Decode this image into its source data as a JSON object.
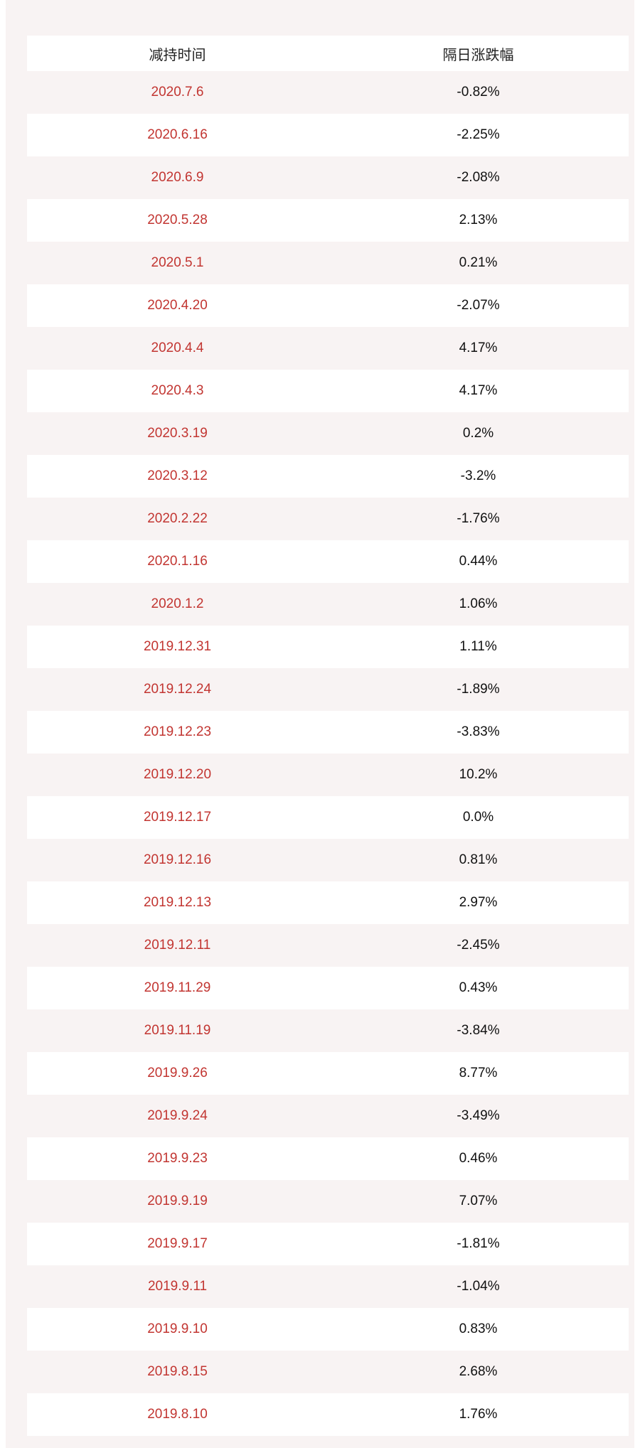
{
  "table": {
    "headers": [
      "减持时间",
      "隔日涨跌幅"
    ],
    "rows": [
      {
        "date": "2020.7.6",
        "change": "-0.82%"
      },
      {
        "date": "2020.6.16",
        "change": "-2.25%"
      },
      {
        "date": "2020.6.9",
        "change": "-2.08%"
      },
      {
        "date": "2020.5.28",
        "change": "2.13%"
      },
      {
        "date": "2020.5.1",
        "change": "0.21%"
      },
      {
        "date": "2020.4.20",
        "change": "-2.07%"
      },
      {
        "date": "2020.4.4",
        "change": "4.17%"
      },
      {
        "date": "2020.4.3",
        "change": "4.17%"
      },
      {
        "date": "2020.3.19",
        "change": "0.2%"
      },
      {
        "date": "2020.3.12",
        "change": "-3.2%"
      },
      {
        "date": "2020.2.22",
        "change": "-1.76%"
      },
      {
        "date": "2020.1.16",
        "change": "0.44%"
      },
      {
        "date": "2020.1.2",
        "change": "1.06%"
      },
      {
        "date": "2019.12.31",
        "change": "1.11%"
      },
      {
        "date": "2019.12.24",
        "change": "-1.89%"
      },
      {
        "date": "2019.12.23",
        "change": "-3.83%"
      },
      {
        "date": "2019.12.20",
        "change": "10.2%"
      },
      {
        "date": "2019.12.17",
        "change": "0.0%"
      },
      {
        "date": "2019.12.16",
        "change": "0.81%"
      },
      {
        "date": "2019.12.13",
        "change": "2.97%"
      },
      {
        "date": "2019.12.11",
        "change": "-2.45%"
      },
      {
        "date": "2019.11.29",
        "change": "0.43%"
      },
      {
        "date": "2019.11.19",
        "change": "-3.84%"
      },
      {
        "date": "2019.9.26",
        "change": "8.77%"
      },
      {
        "date": "2019.9.24",
        "change": "-3.49%"
      },
      {
        "date": "2019.9.23",
        "change": "0.46%"
      },
      {
        "date": "2019.9.19",
        "change": "7.07%"
      },
      {
        "date": "2019.9.17",
        "change": "-1.81%"
      },
      {
        "date": "2019.9.11",
        "change": "-1.04%"
      },
      {
        "date": "2019.9.10",
        "change": "0.83%"
      },
      {
        "date": "2019.8.15",
        "change": "2.68%"
      },
      {
        "date": "2019.8.10",
        "change": "1.76%"
      }
    ]
  },
  "colors": {
    "date_text": "#c23531",
    "value_text": "#111111",
    "stripe": "#f8f3f3",
    "row": "#ffffff"
  }
}
